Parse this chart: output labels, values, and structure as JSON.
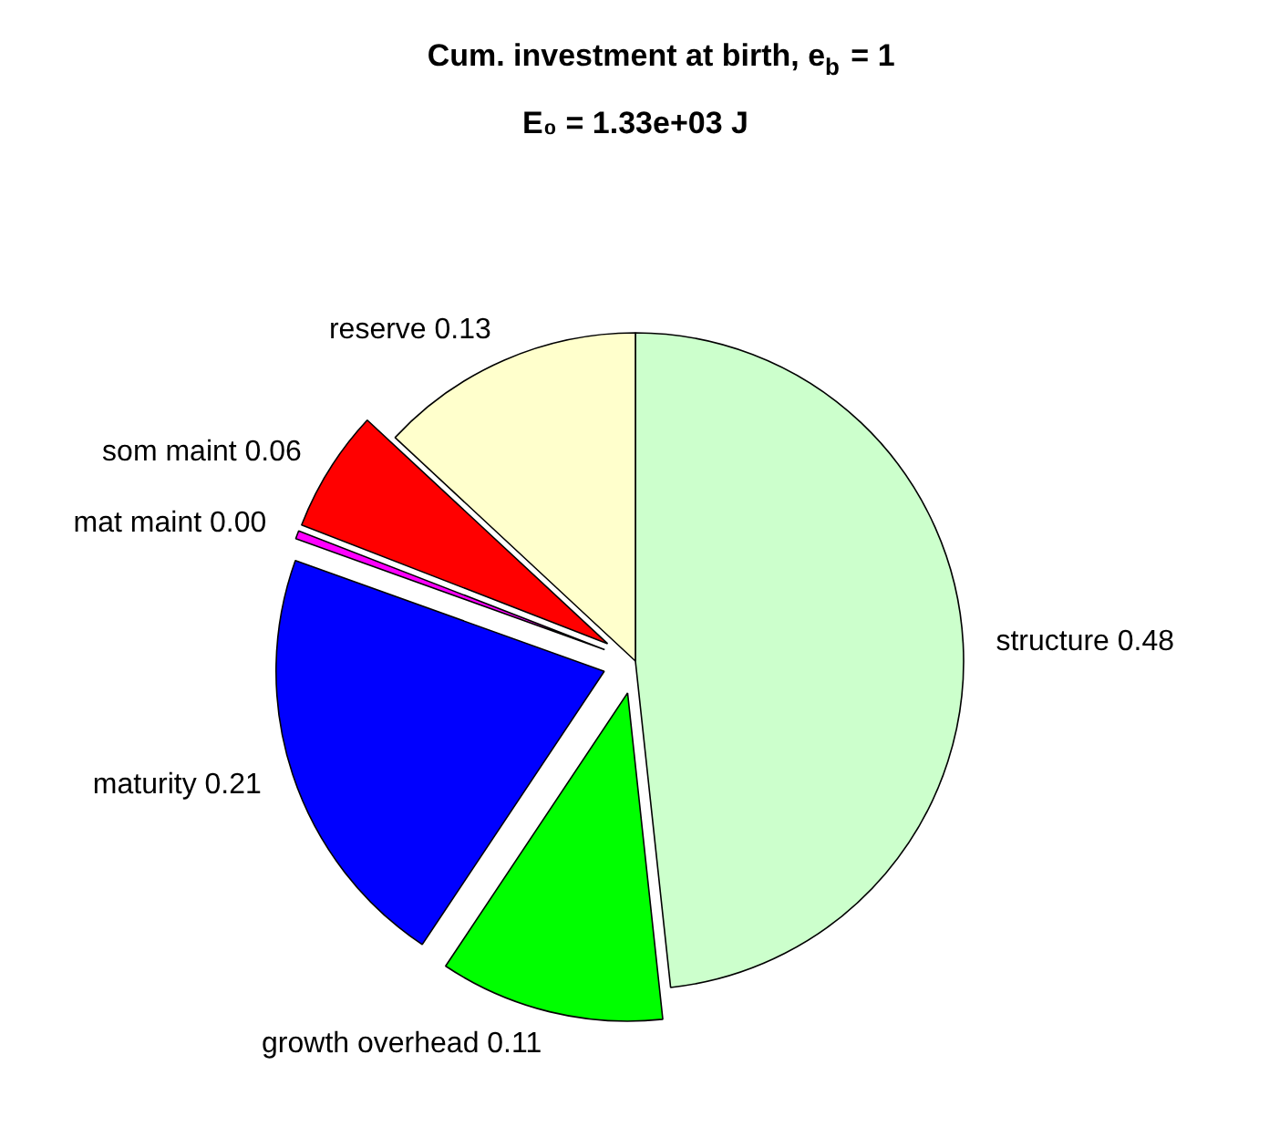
{
  "chart_data": {
    "type": "pie",
    "title": "Cum. investment at birth, e$_{b}$ = 1",
    "subtitle": "E₀ = 1.33e+03 J",
    "categories": [
      "structure",
      "growth overhead",
      "maturity",
      "mat maint",
      "som maint",
      "reserve"
    ],
    "values": [
      0.48,
      0.11,
      0.21,
      0.004,
      0.06,
      0.13
    ],
    "value_labels": [
      "0.48",
      "0.11",
      "0.21",
      "0.00",
      "0.06",
      "0.13"
    ],
    "colors": [
      "#ccffcc",
      "#00ff00",
      "#0000ff",
      "#ff00ff",
      "#ff0000",
      "#ffffcc"
    ]
  }
}
